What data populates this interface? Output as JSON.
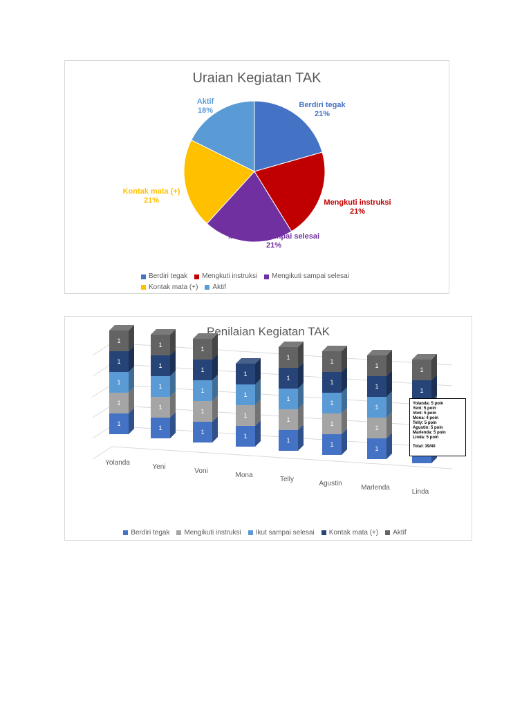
{
  "chart_data": [
    {
      "type": "pie",
      "title": "Uraian Kegiatan TAK",
      "slices": [
        {
          "name": "Berdiri tegak",
          "value": 21,
          "label": "21%",
          "color": "#4472C4"
        },
        {
          "name": "Mengkuti instruksi",
          "value": 21,
          "label": "21%",
          "color": "#C00000"
        },
        {
          "name": "Mengikuti sampai selesai",
          "value": 21,
          "label": "21%",
          "color": "#7030A0"
        },
        {
          "name": "Kontak mata  (+)",
          "value": 21,
          "label": "21%",
          "color": "#FFC000"
        },
        {
          "name": "Aktif",
          "value": 18,
          "label": "18%",
          "color": "#5B9BD5"
        }
      ],
      "legend": {
        "placement": "bottom",
        "labels": [
          "Berdiri tegak",
          "Mengkuti instruksi",
          "Mengikuti sampai selesai",
          "Kontak mata  (+)",
          "Aktif"
        ]
      }
    },
    {
      "type": "bar",
      "stacked": true,
      "style": "3d",
      "title": "Penilaian Kegiatan TAK",
      "categories": [
        "Yolanda",
        "Yeni",
        "Voni",
        "Mona",
        "Telly",
        "Agustin",
        "Marlenda",
        "Linda"
      ],
      "series": [
        {
          "name": "Berdiri tegak",
          "color": "#4472C4",
          "values": [
            1,
            1,
            1,
            1,
            1,
            1,
            1,
            1
          ]
        },
        {
          "name": "Mengikuti instruksi",
          "color": "#A5A5A5",
          "values": [
            1,
            1,
            1,
            1,
            1,
            1,
            1,
            1
          ]
        },
        {
          "name": "Ikut sampai selesai",
          "color": "#5B9BD5",
          "values": [
            1,
            1,
            1,
            1,
            1,
            1,
            1,
            1
          ]
        },
        {
          "name": "Kontak mata (+)",
          "color": "#264478",
          "values": [
            1,
            1,
            1,
            1,
            1,
            1,
            1,
            1
          ]
        },
        {
          "name": "Aktif",
          "color": "#636363",
          "values": [
            1,
            1,
            1,
            0,
            1,
            1,
            1,
            1
          ]
        }
      ],
      "ylim": [
        0,
        5
      ],
      "grid": true,
      "legend": {
        "placement": "bottom"
      },
      "annotation": {
        "lines": [
          "Yolanda: 5 poin",
          "Yeni: 5 poin",
          "Voni: 5 poin",
          "Mona: 4 poin",
          "Telly: 5 poin",
          "Agustin: 5 poin",
          "Marlenda: 5 poin",
          "Linda: 5 poin"
        ],
        "total": "Total: 39/40"
      }
    }
  ]
}
